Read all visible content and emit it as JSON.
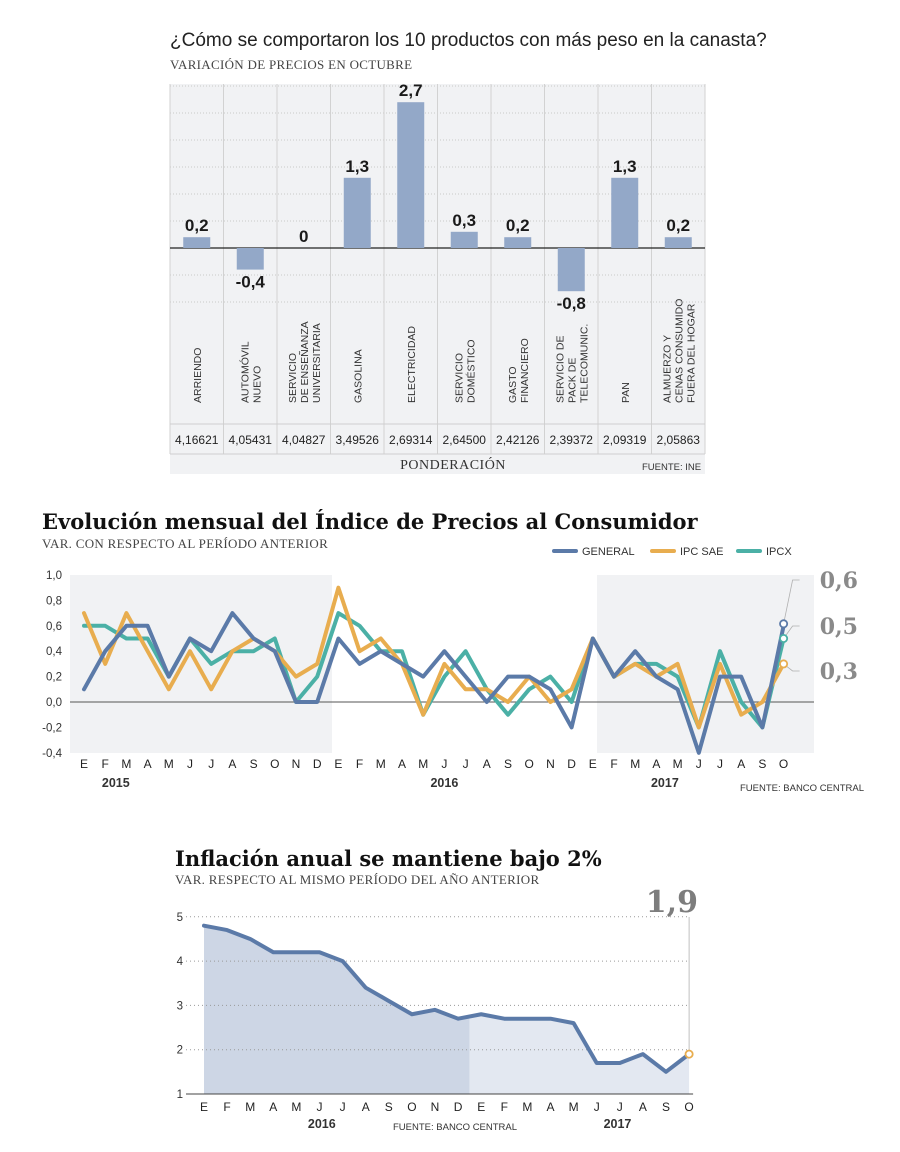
{
  "colors": {
    "bar": "#93a8c8",
    "general": "#5b7aa8",
    "ipc_sae": "#e8ad4f",
    "ipcx": "#4bb0a6",
    "panel": "#f1f2f4",
    "area_dark": "#cdd6e5",
    "area_light": "#e3e8f1"
  },
  "chart_data": [
    {
      "type": "bar",
      "title": "¿Cómo se comportaron los 10 productos con más peso en la canasta?",
      "subtitle": "VARIACIÓN DE PRECIOS EN OCTUBRE",
      "categories": [
        [
          "ARRIENDO"
        ],
        [
          "AUTOMÓVIL",
          "NUEVO"
        ],
        [
          "SERVICIO",
          "DE ENSEÑANZA",
          "UNIVERSITARIA"
        ],
        [
          "GASOLINA"
        ],
        [
          "ELECTRICIDAD"
        ],
        [
          "SERVICIO",
          "DOMÉSTICO"
        ],
        [
          "GASTO",
          "FINANCIERO"
        ],
        [
          "SERVICIO DE",
          "PACK DE",
          "TELECOMUNIC."
        ],
        [
          "PAN"
        ],
        [
          "ALMUERZO Y",
          "CENAS CONSUMIDO",
          "FUERA DEL HOGAR"
        ]
      ],
      "values": [
        0.2,
        -0.4,
        0,
        1.3,
        2.7,
        0.3,
        0.2,
        -0.8,
        1.3,
        0.2
      ],
      "value_labels": [
        "0,2",
        "-0,4",
        "0",
        "1,3",
        "2,7",
        "0,3",
        "0,2",
        "-0,8",
        "1,3",
        "0,2"
      ],
      "weights": [
        "4,16621",
        "4,05431",
        "4,04827",
        "3,49526",
        "2,69314",
        "2,64500",
        "2,42126",
        "2,39372",
        "2,09319",
        "2,05863"
      ],
      "weights_label": "PONDERACIÓN",
      "source": "FUENTE: INE",
      "ylim": [
        -1,
        3
      ]
    },
    {
      "type": "line",
      "title": "Evolución mensual del Índice de Precios al Consumidor",
      "subtitle": "VAR. CON RESPECTO AL PERÍODO ANTERIOR",
      "months": [
        "E",
        "F",
        "M",
        "A",
        "M",
        "J",
        "J",
        "A",
        "S",
        "O",
        "N",
        "D",
        "E",
        "F",
        "M",
        "A",
        "M",
        "J",
        "J",
        "A",
        "S",
        "O",
        "N",
        "D",
        "E",
        "F",
        "M",
        "A",
        "M",
        "J",
        "J",
        "A",
        "S",
        "O"
      ],
      "years": [
        "2015",
        "2016",
        "2017"
      ],
      "yticks": [
        "1,0",
        "0,8",
        "0,6",
        "0,4",
        "0,2",
        "0,0",
        "-0,2",
        "-0,4"
      ],
      "ylim": [
        -0.4,
        1.0
      ],
      "series": [
        {
          "name": "GENERAL",
          "values": [
            0.1,
            0.4,
            0.6,
            0.6,
            0.2,
            0.5,
            0.4,
            0.7,
            0.5,
            0.4,
            0.0,
            0.0,
            0.5,
            0.3,
            0.4,
            0.3,
            0.2,
            0.4,
            0.2,
            0.0,
            0.2,
            0.2,
            0.1,
            -0.2,
            0.5,
            0.2,
            0.4,
            0.2,
            0.1,
            -0.4,
            0.2,
            0.2,
            -0.2,
            0.6
          ]
        },
        {
          "name": "IPC SAE",
          "values": [
            0.7,
            0.3,
            0.7,
            0.4,
            0.1,
            0.4,
            0.1,
            0.4,
            0.5,
            0.4,
            0.2,
            0.3,
            0.9,
            0.4,
            0.5,
            0.3,
            -0.1,
            0.3,
            0.1,
            0.1,
            0.0,
            0.2,
            0.0,
            0.1,
            0.5,
            0.2,
            0.3,
            0.2,
            0.3,
            -0.2,
            0.3,
            -0.1,
            0.0,
            0.3
          ]
        },
        {
          "name": "IPCX",
          "values": [
            0.6,
            0.6,
            0.5,
            0.5,
            0.2,
            0.5,
            0.3,
            0.4,
            0.4,
            0.5,
            0.0,
            0.2,
            0.7,
            0.6,
            0.4,
            0.4,
            -0.1,
            0.2,
            0.4,
            0.1,
            -0.1,
            0.1,
            0.2,
            0.0,
            0.5,
            0.2,
            0.3,
            0.3,
            0.2,
            -0.2,
            0.4,
            0.0,
            -0.2,
            0.5
          ]
        }
      ],
      "end_labels": [
        "0,6",
        "0,5",
        "0,3"
      ],
      "source": "FUENTE: BANCO CENTRAL"
    },
    {
      "type": "area",
      "title": "Inflación anual se mantiene bajo 2%",
      "subtitle": "VAR. RESPECTO AL MISMO PERÍODO DEL AÑO ANTERIOR",
      "months": [
        "E",
        "F",
        "M",
        "A",
        "M",
        "J",
        "J",
        "A",
        "S",
        "O",
        "N",
        "D",
        "E",
        "F",
        "M",
        "A",
        "M",
        "J",
        "J",
        "A",
        "S",
        "O"
      ],
      "years": [
        "2016",
        "2017"
      ],
      "yticks": [
        "5",
        "4",
        "3",
        "2",
        "1"
      ],
      "ylim": [
        1,
        5
      ],
      "values": [
        4.8,
        4.7,
        4.5,
        4.2,
        4.2,
        4.2,
        4.0,
        3.4,
        3.1,
        2.8,
        2.9,
        2.7,
        2.8,
        2.7,
        2.7,
        2.7,
        2.6,
        1.7,
        1.7,
        1.9,
        1.5,
        1.9
      ],
      "end_label": "1,9",
      "source": "FUENTE: BANCO CENTRAL"
    }
  ]
}
